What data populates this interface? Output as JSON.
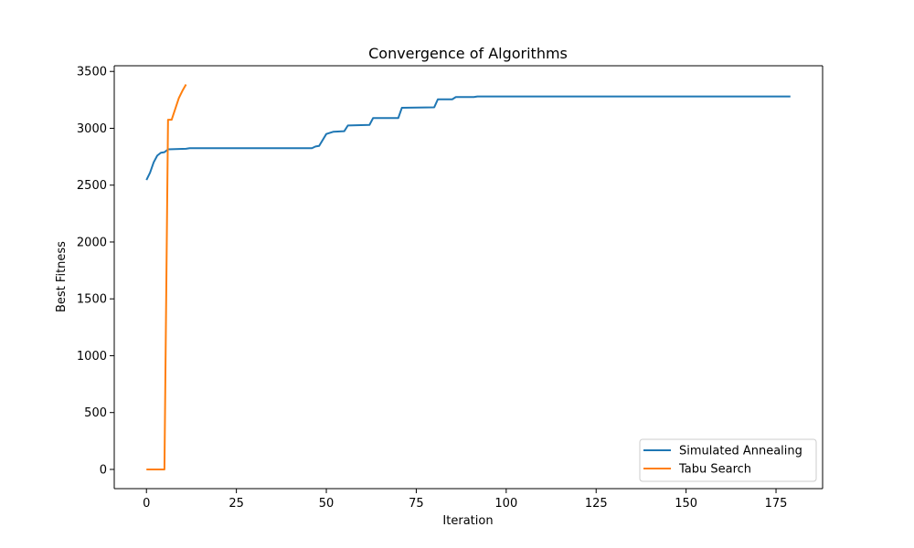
{
  "chart_data": {
    "type": "line",
    "title": "Convergence of Algorithms",
    "xlabel": "Iteration",
    "ylabel": "Best Fitness",
    "xlim": [
      -8.95,
      187.95
    ],
    "ylim": [
      -169,
      3550
    ],
    "xticks": [
      0,
      25,
      50,
      75,
      100,
      125,
      150,
      175
    ],
    "yticks": [
      0,
      500,
      1000,
      1500,
      2000,
      2500,
      3000,
      3500
    ],
    "grid": false,
    "legend_position": "lower-right",
    "series": [
      {
        "name": "Simulated Annealing",
        "color": "#1f77b4",
        "points": [
          [
            0,
            2545
          ],
          [
            1,
            2610
          ],
          [
            2,
            2700
          ],
          [
            3,
            2760
          ],
          [
            4,
            2785
          ],
          [
            5,
            2790
          ],
          [
            6,
            2815
          ],
          [
            11,
            2820
          ],
          [
            12,
            2825
          ],
          [
            46,
            2825
          ],
          [
            47,
            2840
          ],
          [
            48,
            2845
          ],
          [
            50,
            2950
          ],
          [
            52,
            2970
          ],
          [
            55,
            2975
          ],
          [
            56,
            3025
          ],
          [
            62,
            3030
          ],
          [
            63,
            3090
          ],
          [
            70,
            3090
          ],
          [
            71,
            3180
          ],
          [
            80,
            3185
          ],
          [
            81,
            3255
          ],
          [
            85,
            3255
          ],
          [
            86,
            3275
          ],
          [
            91,
            3275
          ],
          [
            92,
            3280
          ],
          [
            179,
            3280
          ]
        ]
      },
      {
        "name": "Tabu Search",
        "color": "#ff7f0e",
        "points": [
          [
            0,
            0
          ],
          [
            5,
            0
          ],
          [
            6,
            3075
          ],
          [
            7,
            3075
          ],
          [
            8,
            3170
          ],
          [
            9,
            3265
          ],
          [
            10,
            3330
          ],
          [
            11,
            3385
          ]
        ]
      }
    ]
  }
}
